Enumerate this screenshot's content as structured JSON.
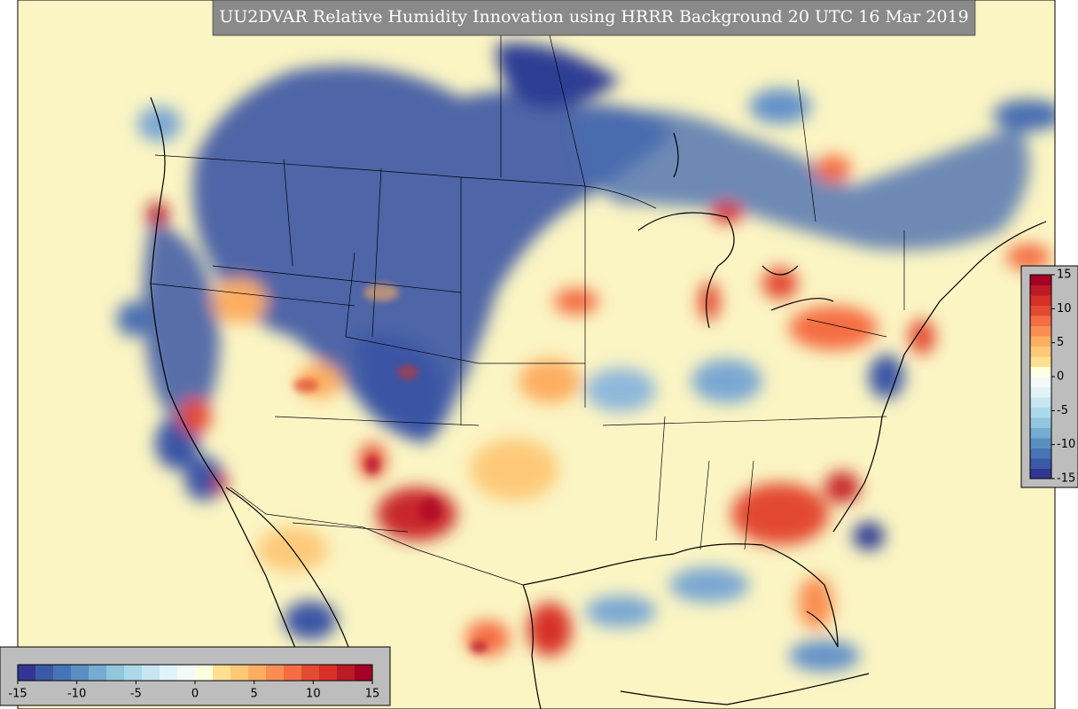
{
  "title": "UU2DVAR Relative Humidity Innovation using HRRR Background 20 UTC 16 Mar 2019",
  "colorbar": {
    "lim": [
      -15,
      15
    ],
    "ticks": [
      -15,
      -10,
      -5,
      0,
      5,
      10,
      15
    ],
    "colors": [
      "#313695",
      "#3a5aa6",
      "#4575b4",
      "#5b8fc2",
      "#74add1",
      "#92c5de",
      "#abd9e9",
      "#c7e6f0",
      "#e0f3f8",
      "#f3fafa",
      "#fefee0",
      "#fee090",
      "#fdc979",
      "#fdae61",
      "#f98e52",
      "#f46d43",
      "#e34a33",
      "#d73027",
      "#bb1a27",
      "#a50026"
    ]
  }
}
